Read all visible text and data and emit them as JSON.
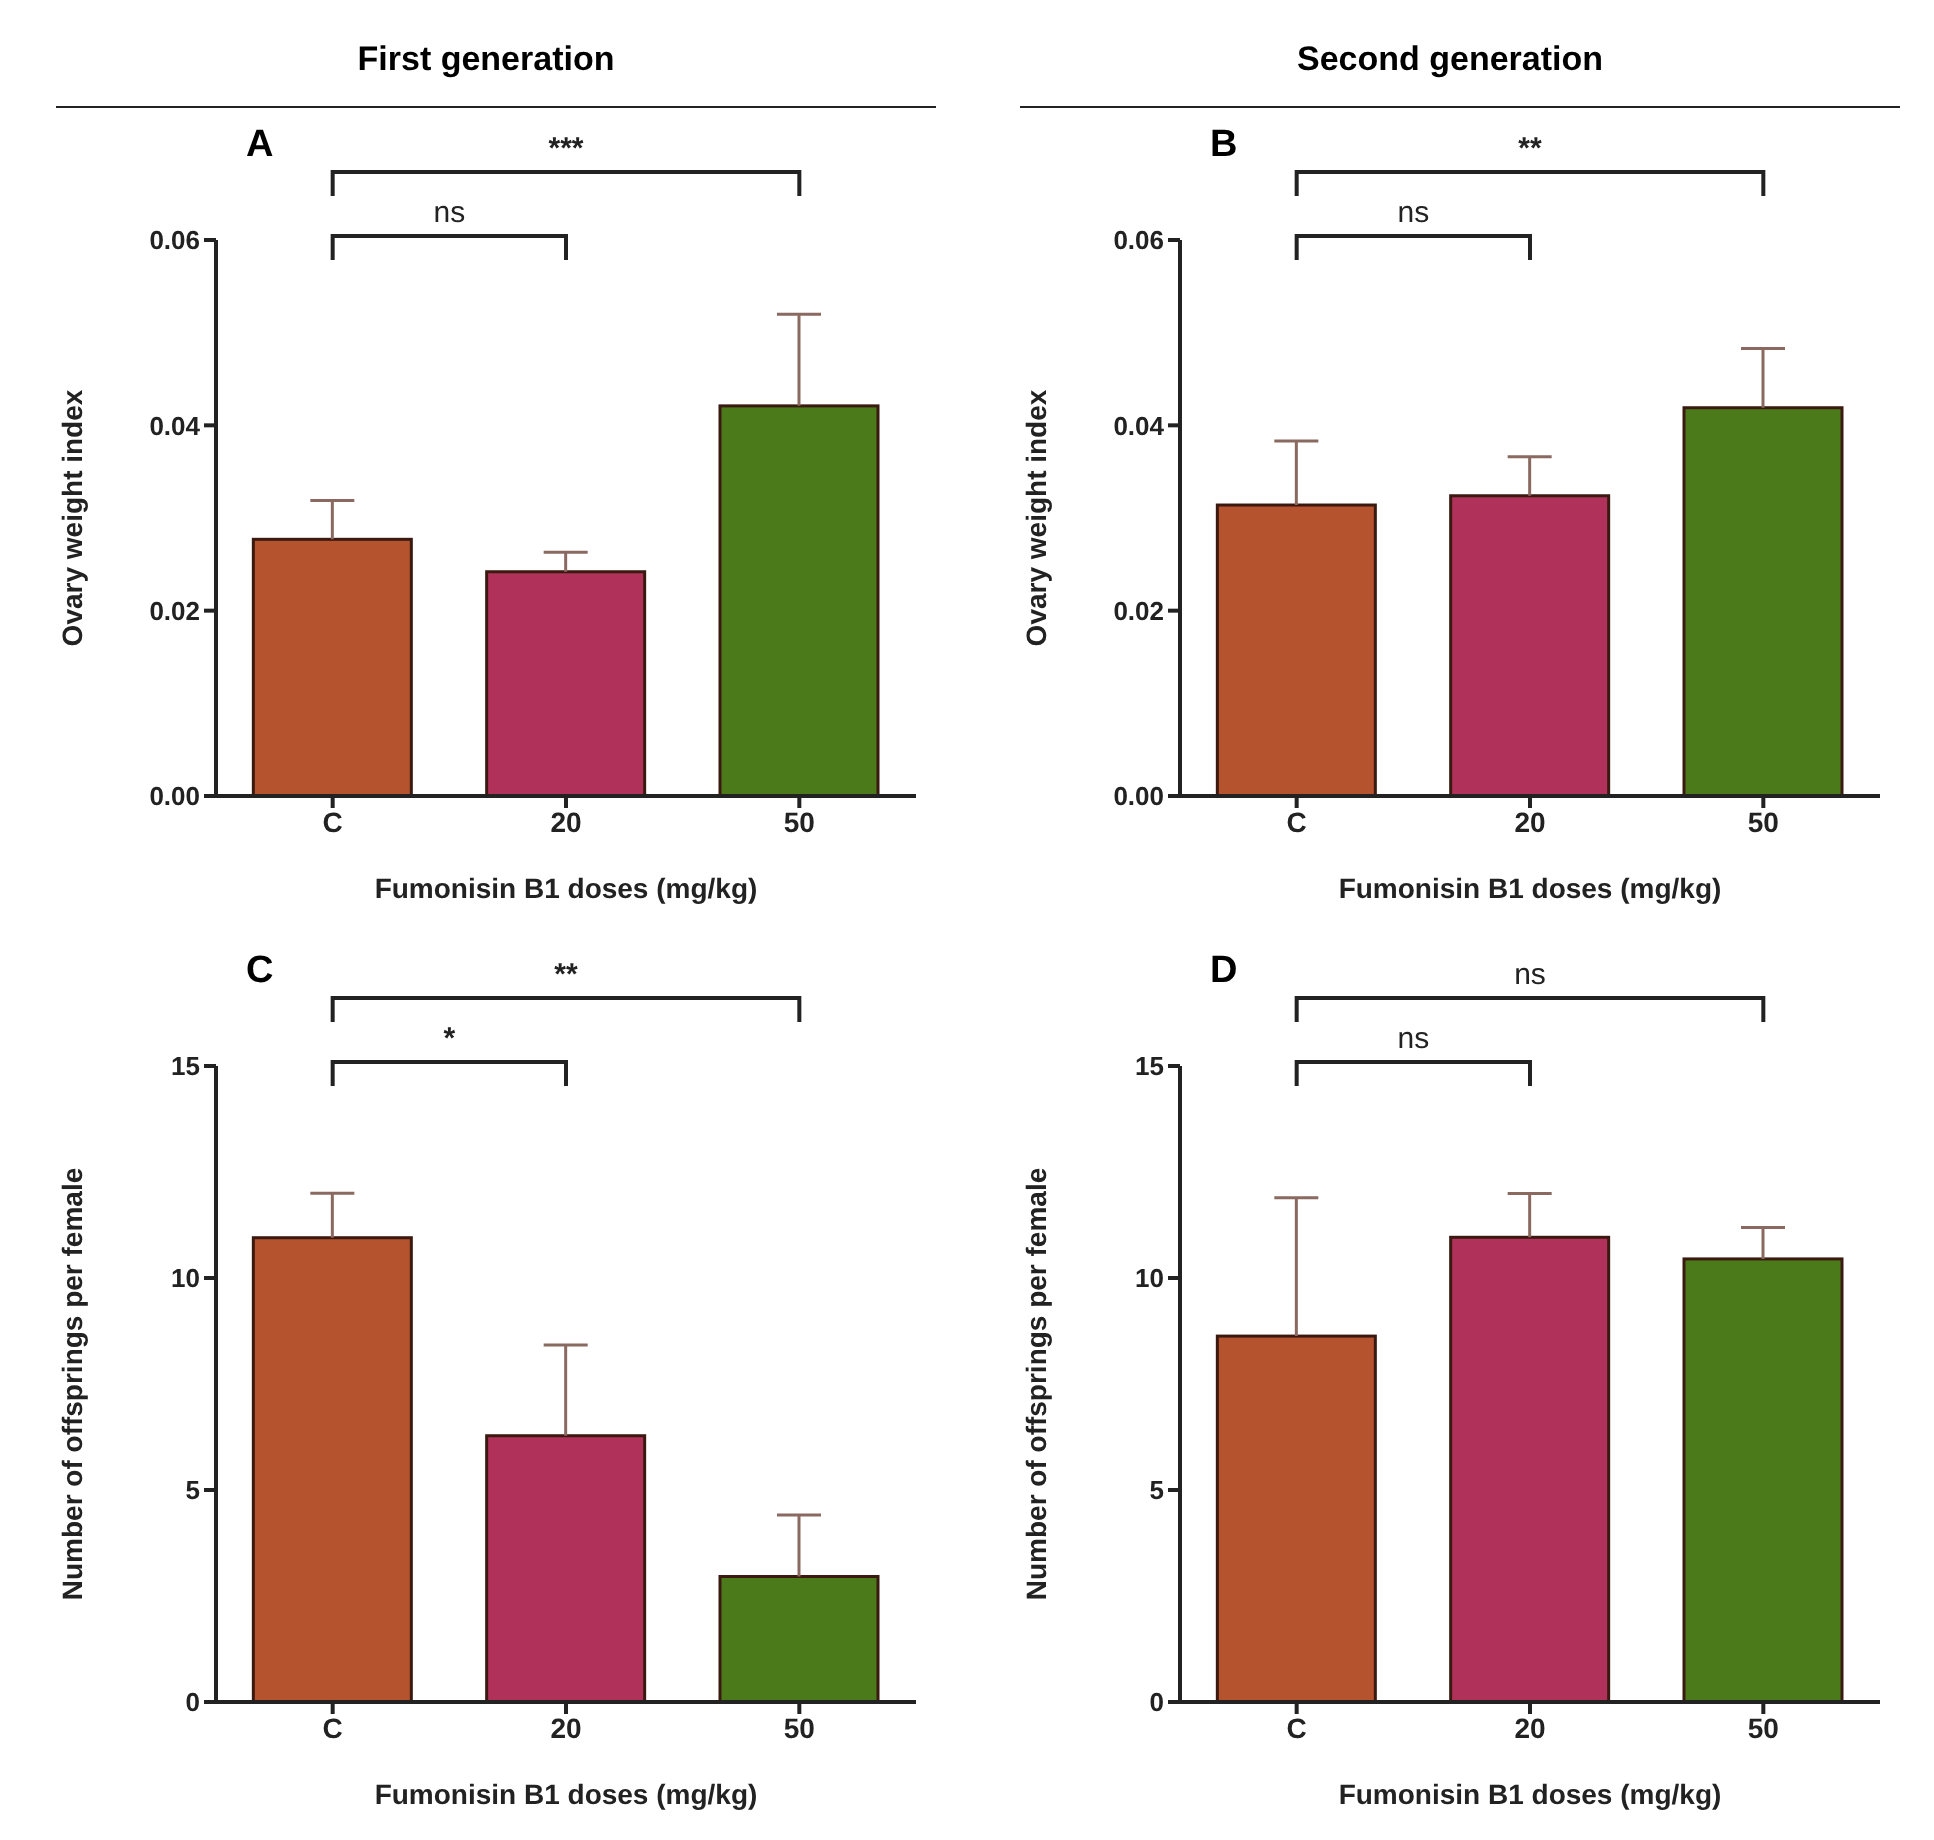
{
  "chart_data": [
    {
      "type": "bar",
      "title": "A",
      "xlabel": "Fumonisin B1 doses (mg/kg)",
      "ylabel": "Ovary weight index",
      "categories": [
        "C",
        "20",
        "50"
      ],
      "values": [
        0.0277,
        0.0242,
        0.0421
      ],
      "colors": [
        "#b5532f",
        "#b0325a",
        "#4a7a1a"
      ],
      "errors": [
        [
          0.0277,
          0.0319
        ],
        [
          0.0242,
          0.0263
        ],
        [
          0.0421,
          0.052
        ]
      ],
      "ylim": [
        0,
        0.06
      ],
      "yticks": [
        {
          "value": 0,
          "label": "0.00"
        },
        {
          "value": 0.02,
          "label": "0.02"
        },
        {
          "value": 0.04,
          "label": "0.04"
        },
        {
          "value": 0.06,
          "label": "0.06"
        }
      ],
      "annotations": [
        "First generation",
        "ns",
        "***"
      ]
    },
    {
      "type": "bar",
      "title": "B",
      "xlabel": "Fumonisin B1 doses (mg/kg)",
      "ylabel": "Ovary weight index",
      "categories": [
        "C",
        "20",
        "50"
      ],
      "values": [
        0.0314,
        0.0324,
        0.0419
      ],
      "colors": [
        "#b5532f",
        "#b0325a",
        "#4a7a1a"
      ],
      "errors": [
        [
          0.0314,
          0.0383
        ],
        [
          0.0324,
          0.0366
        ],
        [
          0.0419,
          0.0483
        ]
      ],
      "ylim": [
        0,
        0.06
      ],
      "yticks": [
        {
          "value": 0,
          "label": "0.00"
        },
        {
          "value": 0.02,
          "label": "0.02"
        },
        {
          "value": 0.04,
          "label": "0.04"
        },
        {
          "value": 0.06,
          "label": "0.06"
        }
      ],
      "annotations": [
        "Second generation",
        "ns",
        "**"
      ]
    },
    {
      "type": "bar",
      "title": "C",
      "xlabel": "Fumonisin B1 doses (mg/kg)",
      "ylabel": "Number of offsprings per female",
      "categories": [
        "C",
        "20",
        "50"
      ],
      "values": [
        10.95,
        6.28,
        2.96
      ],
      "colors": [
        "#b5532f",
        "#b0325a",
        "#4a7a1a"
      ],
      "errors": [
        [
          10.95,
          12.0
        ],
        [
          6.28,
          8.42
        ],
        [
          2.96,
          4.41
        ]
      ],
      "ylim": [
        0,
        15
      ],
      "yticks": [
        0,
        5,
        10,
        15
      ],
      "annotations": [
        "*",
        "**"
      ]
    },
    {
      "type": "bar",
      "title": "D",
      "xlabel": "Fumonisin B1 doses (mg/kg)",
      "ylabel": "Number of offsprings per female",
      "categories": [
        "C",
        "20",
        "50"
      ],
      "values": [
        8.63,
        10.96,
        10.45
      ],
      "colors": [
        "#b5532f",
        "#b0325a",
        "#4a7a1a"
      ],
      "errors": [
        [
          8.63,
          11.89
        ],
        [
          10.96,
          11.99
        ],
        [
          10.45,
          11.19
        ]
      ],
      "ylim": [
        0,
        15
      ],
      "yticks": [
        0,
        5,
        10,
        15
      ],
      "annotations": [
        "ns",
        "ns"
      ]
    }
  ]
}
